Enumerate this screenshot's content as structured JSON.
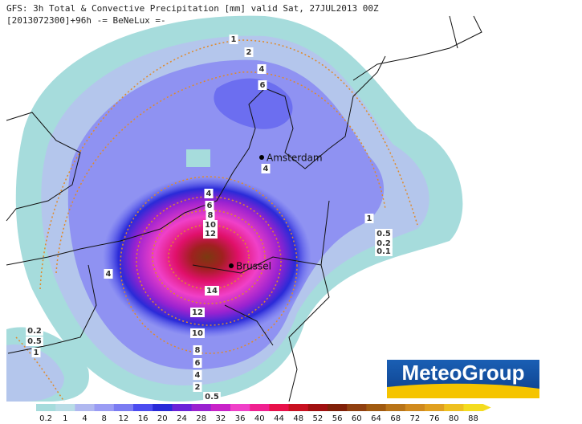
{
  "header": {
    "line1": "GFS: 3h Total & Convective Precipitation [mm] valid Sat, 27JUL2013 00Z",
    "line2": "[2013072300]+96h -= BeNeLux =-"
  },
  "cities": [
    "Amsterdam",
    "Brussel"
  ],
  "contour_labels": [
    1,
    2,
    4,
    6,
    4,
    4,
    6,
    8,
    10,
    12,
    14,
    12,
    10,
    8,
    6,
    4,
    2,
    0.5,
    1,
    0.5,
    0.2,
    0.1,
    4,
    0.2,
    0.5,
    1
  ],
  "legend": {
    "labels": [
      0.2,
      1,
      4,
      8,
      12,
      16,
      20,
      24,
      28,
      32,
      36,
      40,
      44,
      48,
      52,
      56,
      60,
      64,
      68,
      72,
      76,
      80,
      88
    ],
    "colors": [
      "#a6dcdc",
      "#b9dde6",
      "#b0b8f0",
      "#9a9cf4",
      "#7b7cf2",
      "#4c4cf0",
      "#2a2ad8",
      "#6a22d8",
      "#9a22d0",
      "#c822c8",
      "#f040c8",
      "#f02090",
      "#e8104a",
      "#c81020",
      "#a01010",
      "#802008",
      "#904010",
      "#a05a10",
      "#b87418",
      "#d08a1e",
      "#e0a020",
      "#eec020",
      "#f4dc20"
    ]
  },
  "logo": "MeteoGroup"
}
